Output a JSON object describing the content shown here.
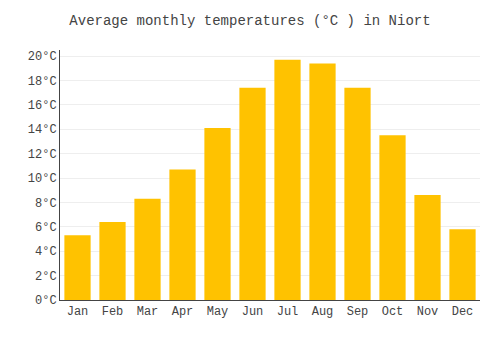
{
  "chart_data": {
    "type": "bar",
    "title": "Average monthly temperatures (°C ) in Niort",
    "categories": [
      "Jan",
      "Feb",
      "Mar",
      "Apr",
      "May",
      "Jun",
      "Jul",
      "Aug",
      "Sep",
      "Oct",
      "Nov",
      "Dec"
    ],
    "values": [
      5.3,
      6.4,
      8.3,
      10.7,
      14.1,
      17.4,
      19.7,
      19.4,
      17.4,
      13.5,
      8.6,
      5.8
    ],
    "color": "#FFC200",
    "ylim": [
      0,
      20.5
    ],
    "yticks": [
      {
        "value": 0,
        "label": "0°C"
      },
      {
        "value": 2,
        "label": "2°C"
      },
      {
        "value": 4,
        "label": "4°C"
      },
      {
        "value": 6,
        "label": "6°C"
      },
      {
        "value": 8,
        "label": "8°C"
      },
      {
        "value": 10,
        "label": "10°C"
      },
      {
        "value": 12,
        "label": "12°C"
      },
      {
        "value": 14,
        "label": "14°C"
      },
      {
        "value": 16,
        "label": "16°C"
      },
      {
        "value": 18,
        "label": "18°C"
      },
      {
        "value": 20,
        "label": "20°C"
      }
    ],
    "grid": true
  }
}
